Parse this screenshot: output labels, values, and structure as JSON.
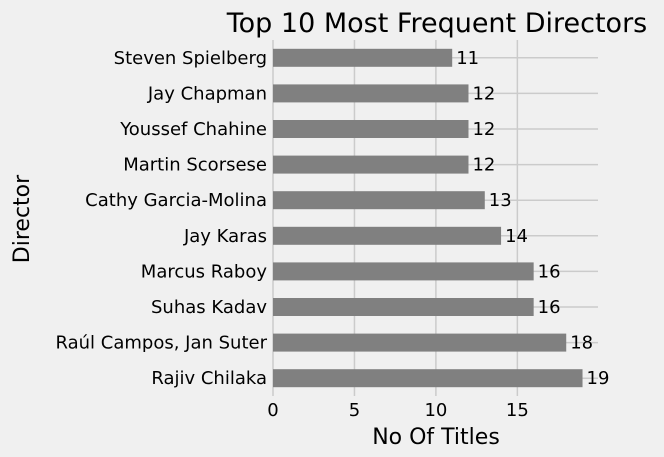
{
  "chart_data": {
    "type": "bar",
    "orientation": "horizontal",
    "title": "Top 10 Most Frequent Directors",
    "xlabel": "No Of Titles",
    "ylabel": "Director",
    "categories": [
      "Steven Spielberg",
      "Jay Chapman",
      "Youssef Chahine",
      "Martin Scorsese",
      "Cathy Garcia-Molina",
      "Jay Karas",
      "Marcus Raboy",
      "Suhas Kadav",
      "Raúl Campos, Jan Suter",
      "Rajiv Chilaka"
    ],
    "values": [
      11,
      12,
      12,
      12,
      13,
      14,
      16,
      16,
      18,
      19
    ],
    "data_labels": [
      "11",
      "12",
      "12",
      "12",
      "13",
      "14",
      "16",
      "16",
      "18",
      "19"
    ],
    "xlim": [
      0,
      19.95
    ],
    "xticks": [
      0,
      5,
      10,
      15
    ],
    "xtick_labels": [
      "0",
      "5",
      "10",
      "15"
    ],
    "grid": true,
    "bar_color": "#808080",
    "background_color": "#f0f0f0"
  }
}
